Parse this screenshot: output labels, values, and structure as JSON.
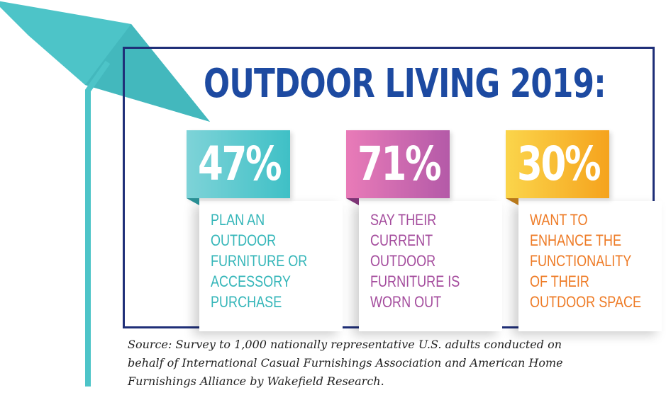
{
  "title": "OUTDOOR LIVING 2019:",
  "colors": {
    "frame": "#1f2f78",
    "title": "#1d4aa1",
    "umbrella": "#4dc4c8",
    "teal": "#3fc0c6",
    "magenta": "#b45aa8",
    "gold": "#f5a31d"
  },
  "stats": [
    {
      "percent": "47%",
      "description": "PLAN AN\nOUTDOOR\nFURNITURE OR\nACCESSORY\nPURCHASE",
      "color": "#3fc0c6"
    },
    {
      "percent": "71%",
      "description": "SAY THEIR\nCURRENT\nOUTDOOR\nFURNITURE IS\nWORN OUT",
      "color": "#b45aa8"
    },
    {
      "percent": "30%",
      "description": "WANT TO\nENHANCE THE\nFUNCTIONALITY\nOF THEIR\nOUTDOOR SPACE",
      "color": "#f5a31d"
    }
  ],
  "source": "Source: Survey to 1,000 nationally representative U.S. adults conducted on\nbehalf of International Casual Furnishings Association and American Home\nFurnishings Alliance by Wakefield Research.",
  "decoration": {
    "icon": "patio-umbrella-icon"
  }
}
